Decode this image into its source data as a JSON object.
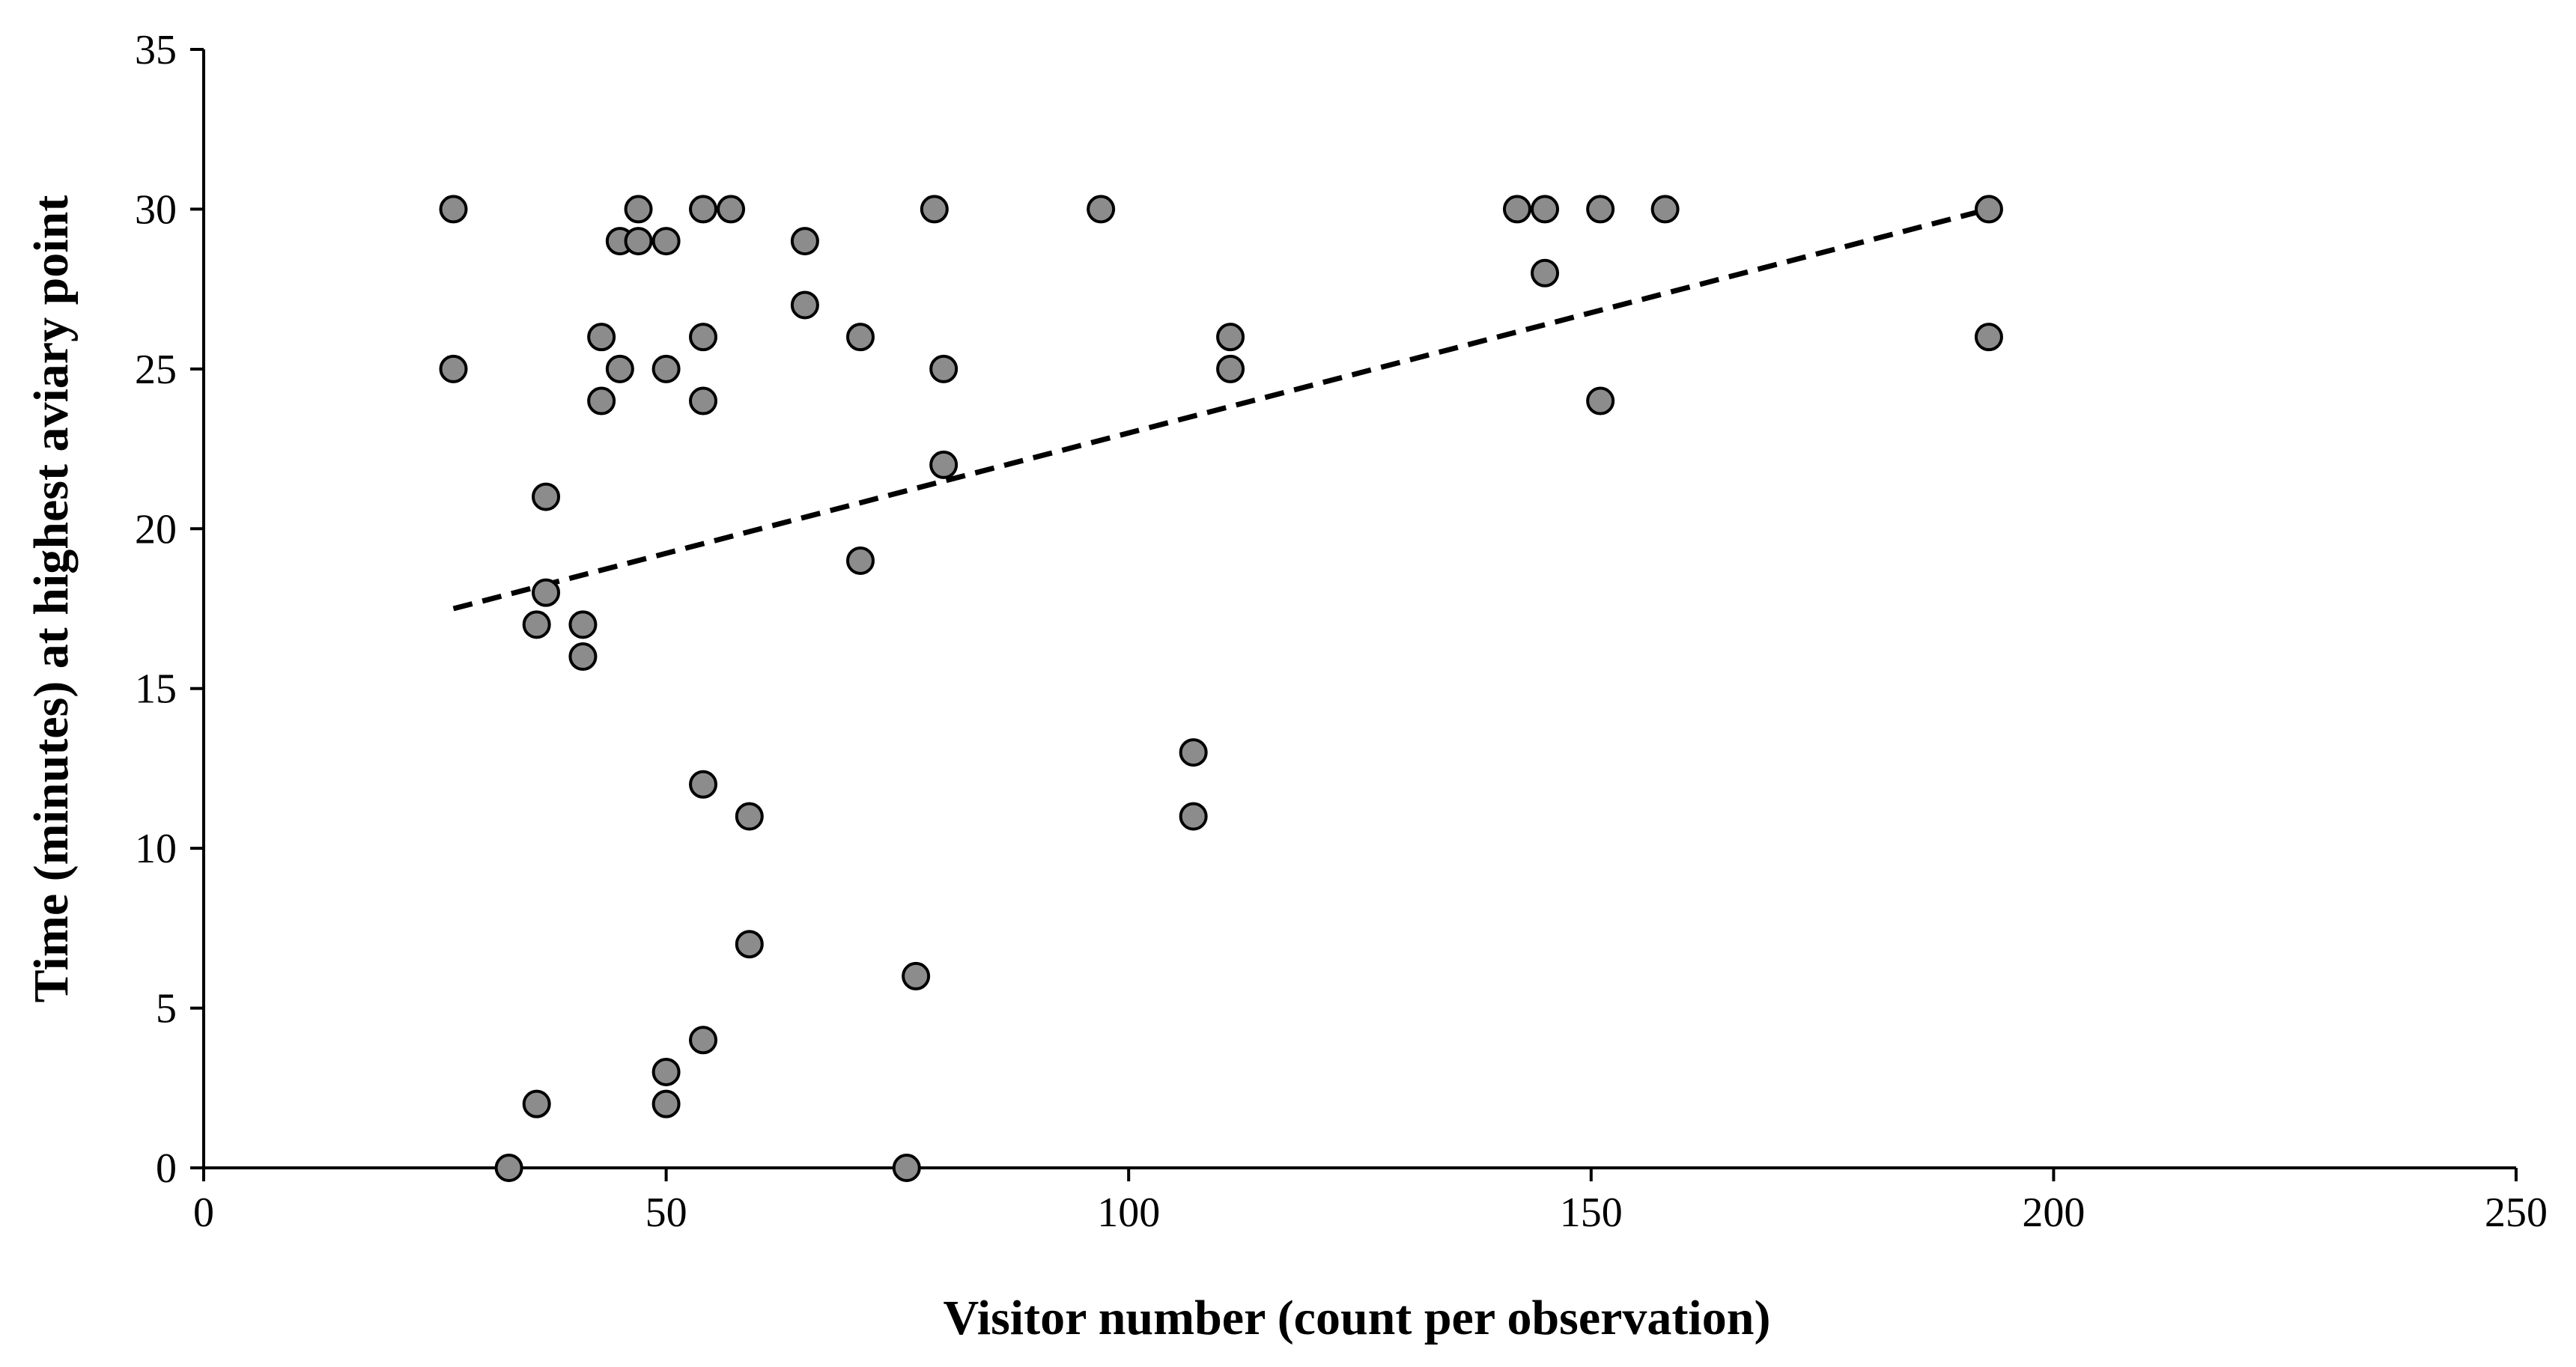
{
  "chart_data": {
    "type": "scatter",
    "title": "",
    "xlabel": "Visitor number (count per observation)",
    "ylabel": "Time (minutes) at highest aviary point",
    "xlim": [
      0,
      250
    ],
    "ylim": [
      0,
      35
    ],
    "x_ticks": [
      0,
      50,
      100,
      150,
      200,
      250
    ],
    "y_ticks": [
      0,
      5,
      10,
      15,
      20,
      25,
      30,
      35
    ],
    "x_tick_labels": [
      "0",
      "50",
      "100",
      "150",
      "200",
      "250"
    ],
    "y_tick_labels": [
      "0",
      "5",
      "10",
      "15",
      "20",
      "25",
      "30",
      "35"
    ],
    "grid": false,
    "legend": "none",
    "colors": {
      "marker_fill": "#8c8c8c",
      "marker_stroke": "#000000",
      "trendline": "#000000",
      "axis": "#000000"
    },
    "series": [
      {
        "points": [
          {
            "x": 27,
            "y": 30
          },
          {
            "x": 27,
            "y": 25
          },
          {
            "x": 33,
            "y": 0
          },
          {
            "x": 36,
            "y": 17
          },
          {
            "x": 36,
            "y": 2
          },
          {
            "x": 37,
            "y": 21
          },
          {
            "x": 37,
            "y": 18
          },
          {
            "x": 41,
            "y": 17
          },
          {
            "x": 41,
            "y": 16
          },
          {
            "x": 43,
            "y": 26
          },
          {
            "x": 43,
            "y": 24
          },
          {
            "x": 45,
            "y": 29
          },
          {
            "x": 45,
            "y": 25
          },
          {
            "x": 47,
            "y": 30
          },
          {
            "x": 47,
            "y": 29
          },
          {
            "x": 50,
            "y": 29
          },
          {
            "x": 50,
            "y": 25
          },
          {
            "x": 50,
            "y": 3
          },
          {
            "x": 50,
            "y": 2
          },
          {
            "x": 54,
            "y": 30
          },
          {
            "x": 54,
            "y": 26
          },
          {
            "x": 54,
            "y": 24
          },
          {
            "x": 54,
            "y": 12
          },
          {
            "x": 54,
            "y": 4
          },
          {
            "x": 57,
            "y": 30
          },
          {
            "x": 59,
            "y": 11
          },
          {
            "x": 59,
            "y": 7
          },
          {
            "x": 65,
            "y": 29
          },
          {
            "x": 65,
            "y": 27
          },
          {
            "x": 71,
            "y": 26
          },
          {
            "x": 71,
            "y": 19
          },
          {
            "x": 76,
            "y": 0
          },
          {
            "x": 77,
            "y": 6
          },
          {
            "x": 79,
            "y": 30
          },
          {
            "x": 80,
            "y": 25
          },
          {
            "x": 80,
            "y": 22
          },
          {
            "x": 97,
            "y": 30
          },
          {
            "x": 107,
            "y": 13
          },
          {
            "x": 107,
            "y": 11
          },
          {
            "x": 111,
            "y": 26
          },
          {
            "x": 111,
            "y": 25
          },
          {
            "x": 142,
            "y": 30
          },
          {
            "x": 145,
            "y": 30
          },
          {
            "x": 145,
            "y": 28
          },
          {
            "x": 151,
            "y": 30
          },
          {
            "x": 151,
            "y": 24
          },
          {
            "x": 158,
            "y": 30
          },
          {
            "x": 193,
            "y": 30
          },
          {
            "x": 193,
            "y": 26
          }
        ]
      }
    ],
    "trendline": {
      "style": "dashed",
      "x": [
        27,
        193
      ],
      "y": [
        17.5,
        30
      ]
    }
  }
}
